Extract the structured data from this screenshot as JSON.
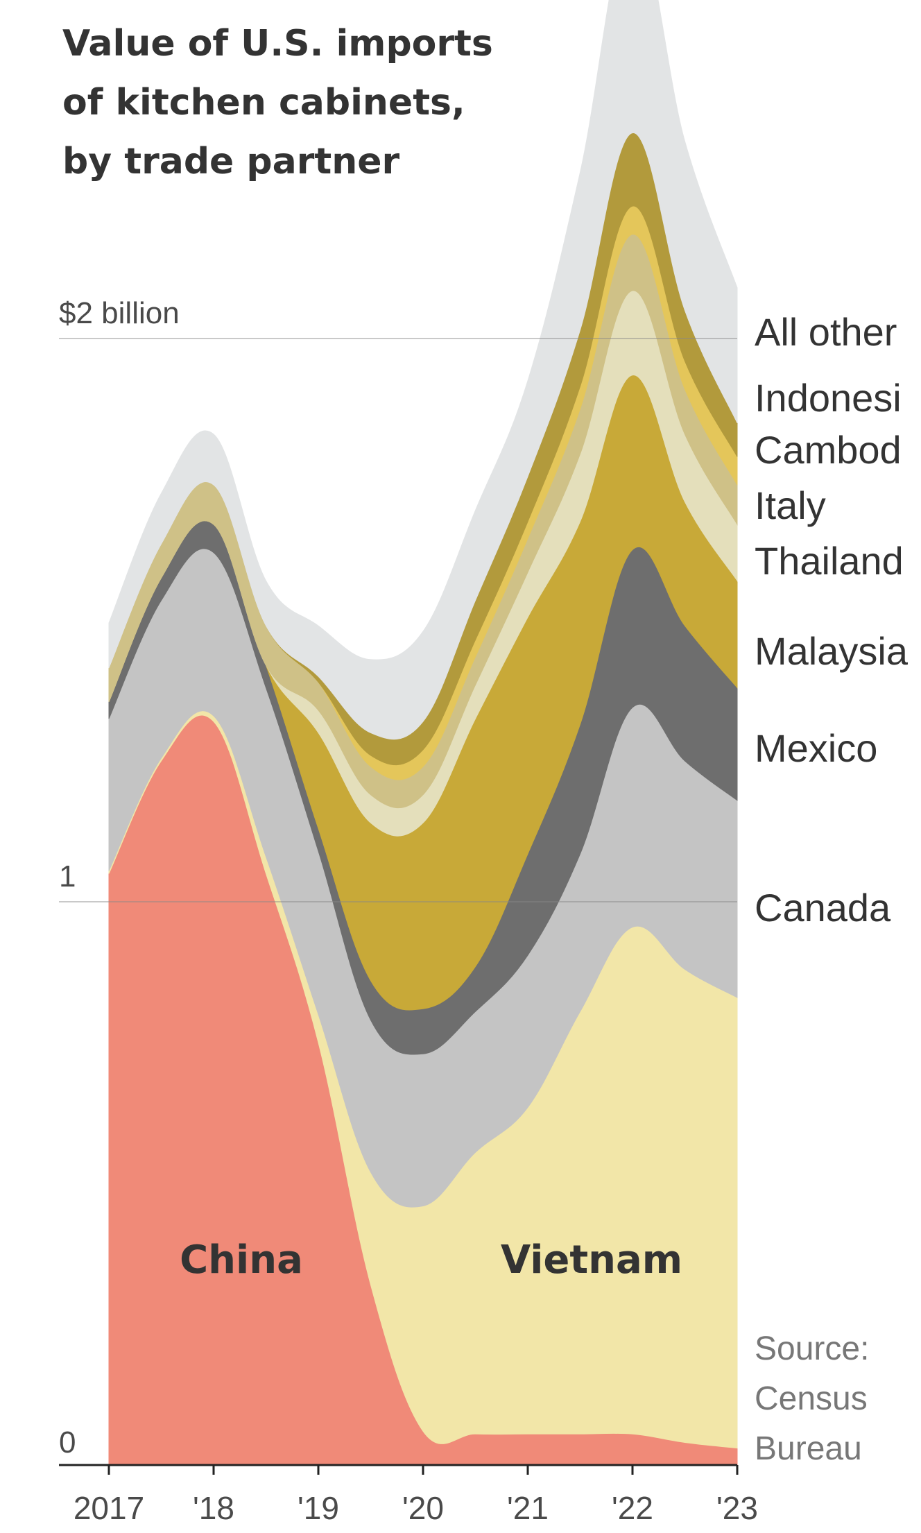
{
  "chart_data": {
    "type": "area",
    "stacked": true,
    "title_lines": [
      "Value of U.S. imports",
      "of kitchen cabinets,",
      "by trade partner"
    ],
    "x": [
      2017.0,
      2017.5,
      2018.0,
      2018.5,
      2019.0,
      2019.5,
      2020.0,
      2020.5,
      2021.0,
      2021.5,
      2022.0,
      2022.5,
      2023.0
    ],
    "x_tick_labels": [
      "2017",
      "'18",
      "'19",
      "'20",
      "'21",
      "'22",
      "'23"
    ],
    "x_tick_values": [
      2017,
      2018,
      2019,
      2020,
      2021,
      2022,
      2023
    ],
    "y_tick_labels": [
      "0",
      "1",
      "$2 billion"
    ],
    "y_tick_values": [
      0,
      1,
      2
    ],
    "ylim": [
      0,
      2.58
    ],
    "series": [
      {
        "name": "China",
        "color": "#f08a78",
        "values": [
          1.05,
          1.25,
          1.32,
          1.05,
          0.75,
          0.32,
          0.06,
          0.055,
          0.055,
          0.055,
          0.055,
          0.04,
          0.03
        ]
      },
      {
        "name": "Vietnam",
        "color": "#f2e6a8",
        "values": [
          0.005,
          0.005,
          0.01,
          0.03,
          0.05,
          0.2,
          0.4,
          0.5,
          0.58,
          0.75,
          0.9,
          0.84,
          0.8
        ]
      },
      {
        "name": "Canada",
        "color": "#c4c4c4",
        "values": [
          0.27,
          0.28,
          0.29,
          0.3,
          0.29,
          0.27,
          0.27,
          0.25,
          0.27,
          0.28,
          0.39,
          0.37,
          0.35
        ]
      },
      {
        "name": "Mexico",
        "color": "#6e6e6e",
        "values": [
          0.03,
          0.04,
          0.05,
          0.04,
          0.04,
          0.07,
          0.08,
          0.08,
          0.18,
          0.23,
          0.28,
          0.24,
          0.2
        ]
      },
      {
        "name": "Malaysia",
        "color": "#c8a938",
        "values": [
          0.0,
          0.0,
          0.0,
          0.0,
          0.17,
          0.28,
          0.33,
          0.44,
          0.42,
          0.36,
          0.31,
          0.22,
          0.19
        ]
      },
      {
        "name": "Thailand",
        "color": "#e4dfbb",
        "values": [
          0.0,
          0.0,
          0.0,
          0.0,
          0.04,
          0.05,
          0.05,
          0.06,
          0.08,
          0.12,
          0.15,
          0.12,
          0.1
        ]
      },
      {
        "name": "Italy",
        "color": "#cfc187",
        "values": [
          0.06,
          0.06,
          0.07,
          0.07,
          0.05,
          0.05,
          0.05,
          0.05,
          0.06,
          0.08,
          0.1,
          0.08,
          0.07
        ]
      },
      {
        "name": "Cambodia",
        "color": "#e4c65a",
        "values": [
          0.0,
          0.0,
          0.0,
          0.0,
          0.0,
          0.02,
          0.03,
          0.03,
          0.03,
          0.04,
          0.05,
          0.05,
          0.05
        ]
      },
      {
        "name": "Indonesia",
        "color": "#b29a3c",
        "values": [
          0.0,
          0.0,
          0.0,
          0.0,
          0.01,
          0.04,
          0.05,
          0.07,
          0.08,
          0.1,
          0.13,
          0.09,
          0.06
        ]
      },
      {
        "name": "All other",
        "color": "#e2e4e5",
        "values": [
          0.08,
          0.09,
          0.09,
          0.08,
          0.09,
          0.13,
          0.16,
          0.16,
          0.17,
          0.28,
          0.38,
          0.3,
          0.24
        ]
      }
    ],
    "series_labels_right": [
      "All other",
      "Indonesi",
      "Cambod",
      "Italy",
      "Thailand",
      "Malaysia",
      "Mexico",
      "Canada"
    ],
    "inside_labels": [
      "China",
      "Vietnam"
    ],
    "source_lines": [
      "Source:",
      "Census",
      "Bureau"
    ],
    "grid": true
  }
}
